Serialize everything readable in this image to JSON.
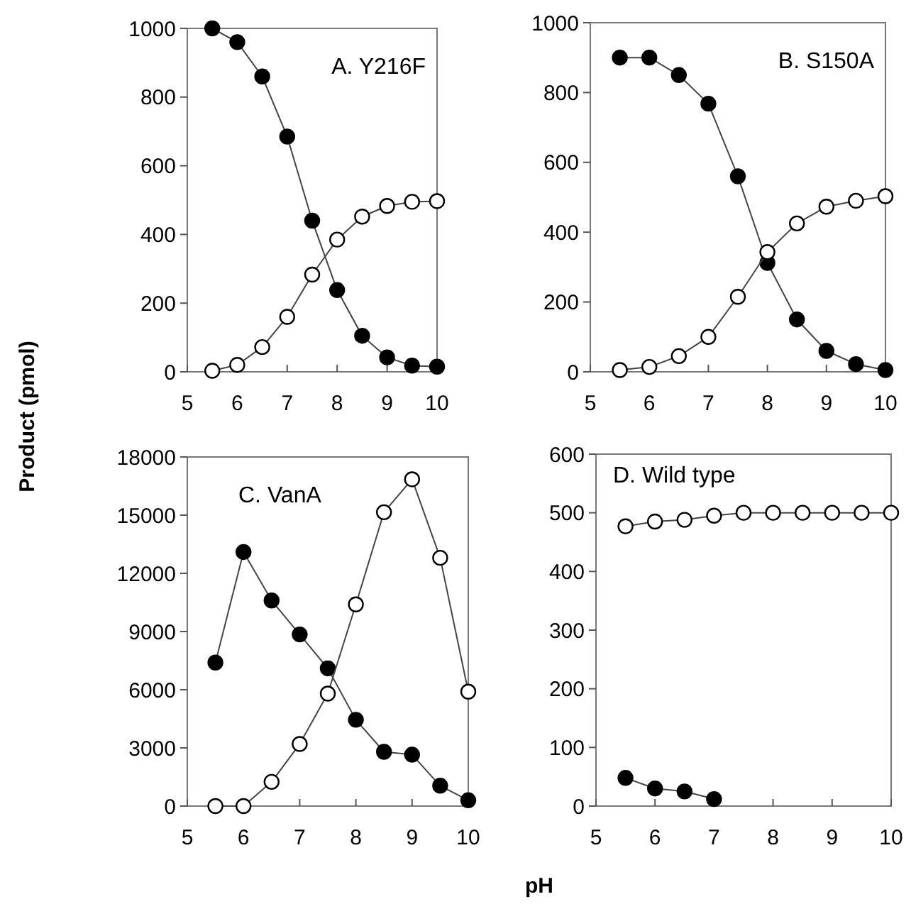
{
  "chart_data": [
    {
      "type": "line",
      "title": "A. Y216F",
      "ylabel": "Product (pmol)",
      "marker": "circle",
      "xlim": [
        5,
        10
      ],
      "xticks": [
        5,
        6,
        7,
        8,
        9,
        10
      ],
      "ylim": [
        0,
        1000
      ],
      "yticks": [
        0,
        200,
        400,
        600,
        800,
        1000
      ],
      "x": [
        5.5,
        6,
        6.5,
        7,
        7.5,
        8,
        8.5,
        9,
        9.5,
        10
      ],
      "series": [
        {
          "color": "#000000",
          "values": [
            1000,
            960,
            860,
            685,
            440,
            238,
            105,
            42,
            18,
            15
          ]
        },
        {
          "color": "#ffffff",
          "values": [
            3,
            20,
            72,
            160,
            283,
            385,
            452,
            483,
            495,
            497
          ]
        }
      ]
    },
    {
      "type": "line",
      "title": "B. S150A",
      "marker": "circle",
      "xlim": [
        5,
        10
      ],
      "xticks": [
        5,
        6,
        7,
        8,
        9,
        10
      ],
      "ylim": [
        0,
        1000
      ],
      "yticks": [
        0,
        200,
        400,
        600,
        800,
        1000
      ],
      "x": [
        5.5,
        6,
        6.5,
        7,
        7.5,
        8,
        8.5,
        9,
        9.5,
        10
      ],
      "series": [
        {
          "color": "#000000",
          "values": [
            900,
            900,
            850,
            768,
            560,
            312,
            150,
            60,
            22,
            5
          ]
        },
        {
          "color": "#ffffff",
          "values": [
            5,
            14,
            45,
            100,
            215,
            343,
            425,
            473,
            490,
            503
          ]
        }
      ]
    },
    {
      "type": "line",
      "title": "C. VanA",
      "xlabel": "pH",
      "marker": "circle",
      "xlim": [
        5,
        10
      ],
      "xticks": [
        5,
        6,
        7,
        8,
        9,
        10
      ],
      "ylim": [
        0,
        18000
      ],
      "yticks": [
        0,
        3000,
        6000,
        9000,
        12000,
        15000,
        18000
      ],
      "x": [
        5.5,
        6,
        6.5,
        7,
        7.5,
        8,
        8.5,
        9,
        9.5,
        10
      ],
      "series": [
        {
          "color": "#000000",
          "values": [
            7400,
            13100,
            10600,
            8850,
            7100,
            4450,
            2800,
            2650,
            1050,
            300
          ]
        },
        {
          "color": "#ffffff",
          "values": [
            0,
            0,
            1250,
            3200,
            5800,
            10400,
            15150,
            16850,
            12800,
            5900
          ]
        }
      ]
    },
    {
      "type": "line",
      "title": "D. Wild type",
      "marker": "circle",
      "xlim": [
        5,
        10
      ],
      "xticks": [
        5,
        6,
        7,
        8,
        9,
        10
      ],
      "ylim": [
        0,
        600
      ],
      "yticks": [
        0,
        100,
        200,
        300,
        400,
        500,
        600
      ],
      "x": [
        5.5,
        6,
        6.5,
        7,
        7.5,
        8,
        8.5,
        9,
        9.5,
        10
      ],
      "series": [
        {
          "color": "#000000",
          "values": [
            48,
            30,
            25,
            12,
            null,
            null,
            null,
            null,
            null,
            null
          ]
        },
        {
          "color": "#ffffff",
          "values": [
            477,
            485,
            488,
            495,
            500,
            500,
            500,
            500,
            500,
            500
          ]
        }
      ]
    }
  ]
}
